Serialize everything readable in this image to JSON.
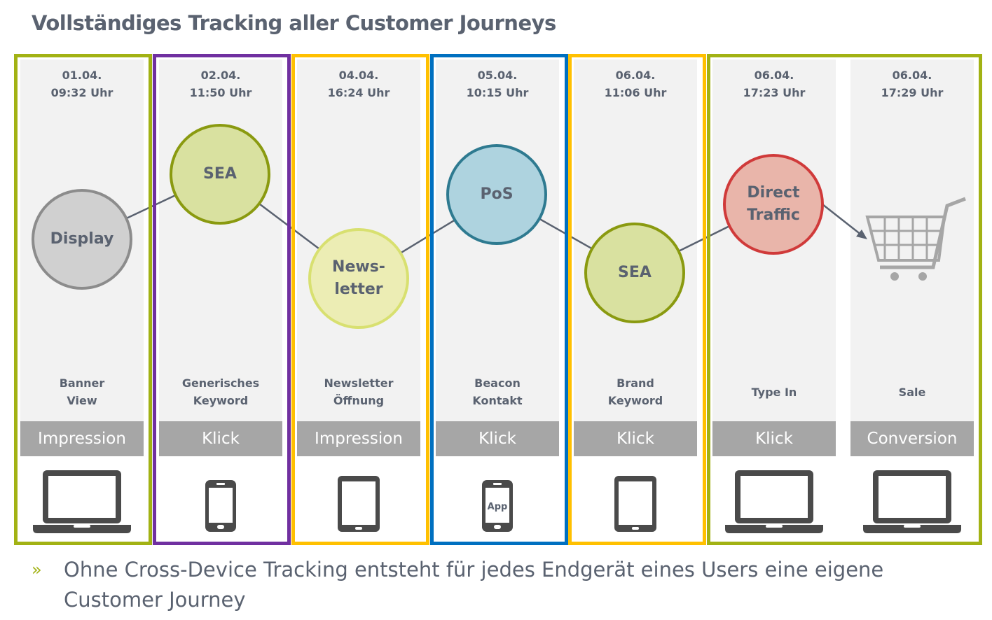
{
  "title": "Vollständiges Tracking aller Customer Journeys",
  "columns": [
    {
      "date": "01.04.",
      "time": "09:32 Uhr",
      "desc1": "Banner",
      "desc2": "View",
      "action": "Impression",
      "device": "laptop-icon"
    },
    {
      "date": "02.04.",
      "time": "11:50 Uhr",
      "desc1": "Generisches",
      "desc2": "Keyword",
      "action": "Klick",
      "device": "smartphone-icon"
    },
    {
      "date": "04.04.",
      "time": "16:24 Uhr",
      "desc1": "Newsletter",
      "desc2": "Öffnung",
      "action": "Impression",
      "device": "tablet-icon"
    },
    {
      "date": "05.04.",
      "time": "10:15 Uhr",
      "desc1": "Beacon",
      "desc2": "Kontakt",
      "action": "Klick",
      "device": "smartphone-app-icon"
    },
    {
      "date": "06.04.",
      "time": "11:06 Uhr",
      "desc1": "Brand",
      "desc2": "Keyword",
      "action": "Klick",
      "device": "tablet-icon"
    },
    {
      "date": "06.04.",
      "time": "17:23 Uhr",
      "desc1": "Type In",
      "desc2": "",
      "action": "Klick",
      "device": "laptop-icon"
    },
    {
      "date": "06.04.",
      "time": "17:29 Uhr",
      "desc1": "Sale",
      "desc2": "",
      "action": "Conversion",
      "device": "laptop-icon"
    }
  ],
  "touchpoints": [
    {
      "line1": "Display",
      "line2": "",
      "fill": "#d0d0d0",
      "stroke": "#8c8c8c"
    },
    {
      "line1": "SEA",
      "line2": "",
      "fill": "#d9e1a0",
      "stroke": "#8a9a10"
    },
    {
      "line1": "News-",
      "line2": "letter",
      "fill": "#ecedb4",
      "stroke": "#d8e070"
    },
    {
      "line1": "PoS",
      "line2": "",
      "fill": "#aed3df",
      "stroke": "#2e7a90"
    },
    {
      "line1": "SEA",
      "line2": "",
      "fill": "#d9e1a0",
      "stroke": "#8a9a10"
    },
    {
      "line1": "Direct",
      "line2": "Traffic",
      "fill": "#e9b5aa",
      "stroke": "#d03a3a"
    }
  ],
  "app_label": "App",
  "device_frames": [
    {
      "color": "#a2b214"
    },
    {
      "color": "#7030a0"
    },
    {
      "color": "#ffc000"
    },
    {
      "color": "#0070c0"
    },
    {
      "color": "#ffc000"
    },
    {
      "color": "#a2b214"
    }
  ],
  "note": {
    "bullet": "»",
    "text": "Ohne Cross-Device Tracking entsteht für jedes Endgerät eines Users eine eigene Customer Journey"
  }
}
